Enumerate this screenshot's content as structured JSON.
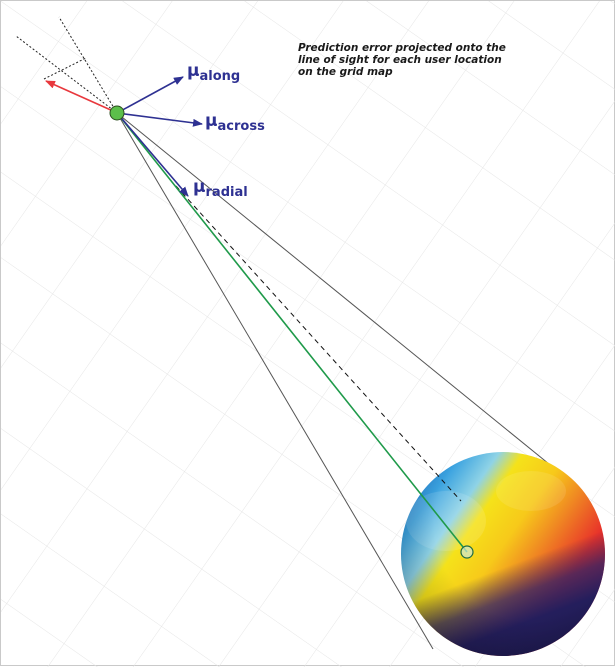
{
  "caption": {
    "lines": [
      "Prediction error projected onto the",
      "line of sight for each user location",
      "on the grid map"
    ]
  },
  "vectors": {
    "along": {
      "symbol": "μ",
      "subscript": "along"
    },
    "across": {
      "symbol": "μ",
      "subscript": "across"
    },
    "radial": {
      "symbol": "μ",
      "subscript": "radial"
    }
  },
  "colors": {
    "vector_blue": "#2e3192",
    "error_red": "#e8383d",
    "line_of_sight_green": "#1f9a4a",
    "satellite_green": "#5cbf4a",
    "cone_gray": "#555555",
    "background_grid": "#dcdcdc"
  },
  "icons": [
    "satellite-dot-icon",
    "user-location-circle-icon"
  ]
}
